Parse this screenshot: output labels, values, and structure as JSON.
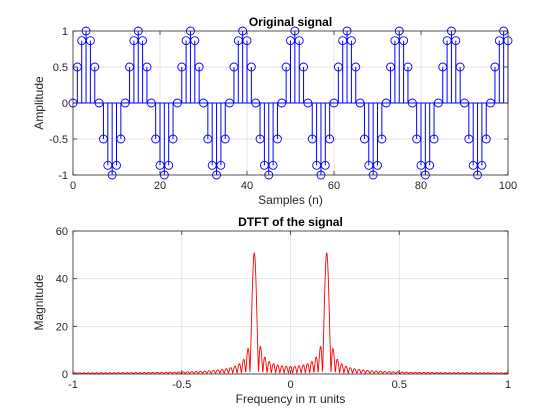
{
  "chart_data": [
    {
      "type": "stem",
      "title": "Original signal",
      "xlabel": "Samples (n)",
      "ylabel": "Amplitude",
      "xlim": [
        0,
        100
      ],
      "ylim": [
        -1,
        1
      ],
      "xticks": [
        0,
        20,
        40,
        60,
        80,
        100
      ],
      "yticks": [
        -1,
        -0.5,
        0,
        0.5,
        1
      ],
      "xtick_labels": [
        "0",
        "20",
        "40",
        "60",
        "80",
        "100"
      ],
      "ytick_labels": [
        "-1",
        "-0.5",
        "0",
        "0.5",
        "1"
      ],
      "grid": true,
      "signal": "sin(2*pi*n/12)",
      "n": [
        0,
        1,
        2,
        3,
        4,
        5,
        6,
        7,
        8,
        9,
        10,
        11,
        12,
        13,
        14,
        15,
        16,
        17,
        18,
        19,
        20,
        21,
        22,
        23,
        24,
        25,
        26,
        27,
        28,
        29,
        30,
        31,
        32,
        33,
        34,
        35,
        36,
        37,
        38,
        39,
        40,
        41,
        42,
        43,
        44,
        45,
        46,
        47,
        48,
        49,
        50,
        51,
        52,
        53,
        54,
        55,
        56,
        57,
        58,
        59,
        60,
        61,
        62,
        63,
        64,
        65,
        66,
        67,
        68,
        69,
        70,
        71,
        72,
        73,
        74,
        75,
        76,
        77,
        78,
        79,
        80,
        81,
        82,
        83,
        84,
        85,
        86,
        87,
        88,
        89,
        90,
        91,
        92,
        93,
        94,
        95,
        96,
        97,
        98,
        99,
        100
      ],
      "color": "#0000ff"
    },
    {
      "type": "line",
      "title": "DTFT of the signal",
      "xlabel": "Frequency  in  π  units",
      "ylabel": "Magnitude",
      "xlim": [
        -1,
        1
      ],
      "ylim": [
        0,
        60
      ],
      "xticks": [
        -1,
        -0.5,
        0,
        0.5,
        1
      ],
      "yticks": [
        0,
        20,
        40,
        60
      ],
      "xtick_labels": [
        "-1",
        "-0.5",
        "0",
        "0.5",
        "1"
      ],
      "ytick_labels": [
        "0",
        "20",
        "40",
        "60"
      ],
      "grid": true,
      "series": "|DTFT(sin(2*pi*n/12)), n = 0..100|",
      "peaks": [
        {
          "x": -0.1667,
          "y": 50.5
        },
        {
          "x": 0.1667,
          "y": 50.5
        }
      ],
      "color": "#ff0000"
    }
  ]
}
